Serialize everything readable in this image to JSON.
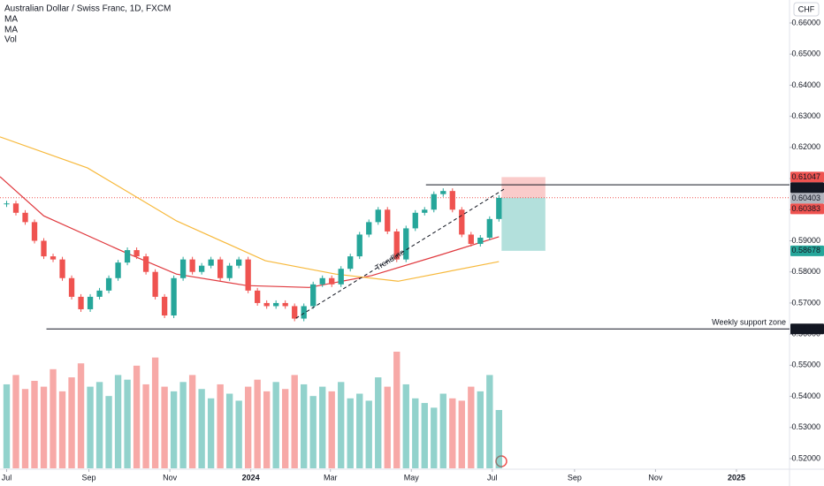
{
  "chart_data": {
    "type": "candlestick",
    "title": "Australian Dollar / Swiss Franc, 1D, FXCM",
    "indicators": [
      "MA",
      "MA",
      "Vol"
    ],
    "currency": "CHF",
    "x": [
      0,
      7,
      14,
      21,
      28,
      35,
      42,
      49,
      56,
      63,
      70,
      77,
      84,
      91,
      98,
      105,
      112,
      119,
      126,
      133,
      140,
      147,
      154,
      161,
      168,
      175,
      182,
      189,
      196,
      203,
      210,
      217,
      224,
      231,
      238,
      245,
      252,
      259,
      266,
      273,
      280,
      287,
      294,
      301,
      308,
      315,
      322,
      329,
      336,
      343,
      350,
      357,
      364,
      371
    ],
    "values": [
      0.602,
      0.599,
      0.596,
      0.59,
      0.585,
      0.584,
      0.578,
      0.572,
      0.568,
      0.572,
      0.574,
      0.578,
      0.583,
      0.587,
      0.585,
      0.58,
      0.572,
      0.566,
      0.578,
      0.584,
      0.58,
      0.582,
      0.584,
      0.578,
      0.582,
      0.584,
      0.574,
      0.57,
      0.569,
      0.57,
      0.569,
      0.565,
      0.569,
      0.576,
      0.578,
      0.576,
      0.581,
      0.585,
      0.592,
      0.596,
      0.6,
      0.593,
      0.584,
      0.594,
      0.599,
      0.6,
      0.605,
      0.606,
      0.6,
      0.592,
      0.589,
      0.591,
      0.597,
      0.6038
    ],
    "volume": [
      72,
      80,
      68,
      75,
      70,
      85,
      66,
      78,
      90,
      70,
      74,
      62,
      80,
      76,
      88,
      72,
      95,
      70,
      66,
      74,
      80,
      68,
      60,
      72,
      64,
      58,
      70,
      76,
      66,
      74,
      68,
      80,
      72,
      62,
      70,
      66,
      74,
      60,
      64,
      58,
      78,
      70,
      100,
      72,
      60,
      56,
      52,
      64,
      60,
      58,
      70,
      66,
      80,
      50
    ],
    "volume_ylim": [
      0,
      100
    ],
    "series": [
      {
        "name": "MA",
        "color": "#e0393e",
        "x": [
          -5,
          28,
          88,
          128,
          181,
          228,
          275,
          328,
          371
        ],
        "values": [
          0.6106,
          0.598,
          0.5865,
          0.5793,
          0.5756,
          0.575,
          0.5788,
          0.5856,
          0.5913
        ]
      },
      {
        "name": "MA",
        "color": "#f7b93c",
        "x": [
          -5,
          61,
          128,
          195,
          248,
          295,
          371
        ],
        "values": [
          0.6234,
          0.6134,
          0.5964,
          0.5836,
          0.5793,
          0.577,
          0.5833
        ]
      }
    ],
    "up_color": "#26a69a",
    "down_color": "#ef5350",
    "xlim": [
      -5,
      590
    ],
    "ylim": [
      0.52,
      0.66
    ],
    "xticks": [
      {
        "value": 0,
        "label": "Jul"
      },
      {
        "value": 62,
        "label": "Sep"
      },
      {
        "value": 123,
        "label": "Nov"
      },
      {
        "value": 184,
        "label": "2024"
      },
      {
        "value": 244,
        "label": "Mar"
      },
      {
        "value": 305,
        "label": "May"
      },
      {
        "value": 366,
        "label": "Jul"
      },
      {
        "value": 428,
        "label": "Sep"
      },
      {
        "value": 489,
        "label": "Nov"
      },
      {
        "value": 550,
        "label": "2025"
      }
    ],
    "yticks": [
      {
        "value": 0.52,
        "label": "0.52000"
      },
      {
        "value": 0.53,
        "label": "0.53000"
      },
      {
        "value": 0.54,
        "label": "0.54000"
      },
      {
        "value": 0.55,
        "label": "0.55000"
      },
      {
        "value": 0.56,
        "label": "0.56000"
      },
      {
        "value": 0.57,
        "label": "0.57000"
      },
      {
        "value": 0.58,
        "label": "0.58000"
      },
      {
        "value": 0.59,
        "label": "0.59000"
      },
      {
        "value": 0.6,
        "label": "0.60000"
      },
      {
        "value": 0.61,
        "label": "0.61000"
      },
      {
        "value": 0.62,
        "label": "0.62000"
      },
      {
        "value": 0.63,
        "label": "0.63000"
      },
      {
        "value": 0.64,
        "label": "0.64000"
      },
      {
        "value": 0.65,
        "label": "0.65000"
      },
      {
        "value": 0.66,
        "label": "0.66000"
      }
    ],
    "price_labels": [
      {
        "value": 0.61047,
        "label": "0.61047",
        "color": "#ef5350"
      },
      {
        "value": 0.608,
        "label": "0.60800",
        "color": "#131722"
      },
      {
        "value": 0.60403,
        "label": "0.60403",
        "color": "#b2b5be"
      },
      {
        "value": 0.60383,
        "label": "0.60383",
        "color": "#ef5350"
      },
      {
        "value": 0.58678,
        "label": "0.58678",
        "color": "#26a69a"
      },
      {
        "value": 0.56169,
        "label": "0.56169",
        "color": "#131722"
      }
    ],
    "resistance": {
      "value": 0.608,
      "x": 316
    },
    "support": {
      "value": 0.56169,
      "x": 30,
      "label": "Weekly support zone"
    },
    "trendline": {
      "x": [
        218,
        376
      ],
      "values": [
        0.5651,
        0.6069
      ],
      "label": "Trendline"
    },
    "position": {
      "x": [
        373,
        406
      ],
      "stop": 0.61047,
      "entry": 0.60383,
      "target": 0.58678
    },
    "last_price": 0.60383
  }
}
